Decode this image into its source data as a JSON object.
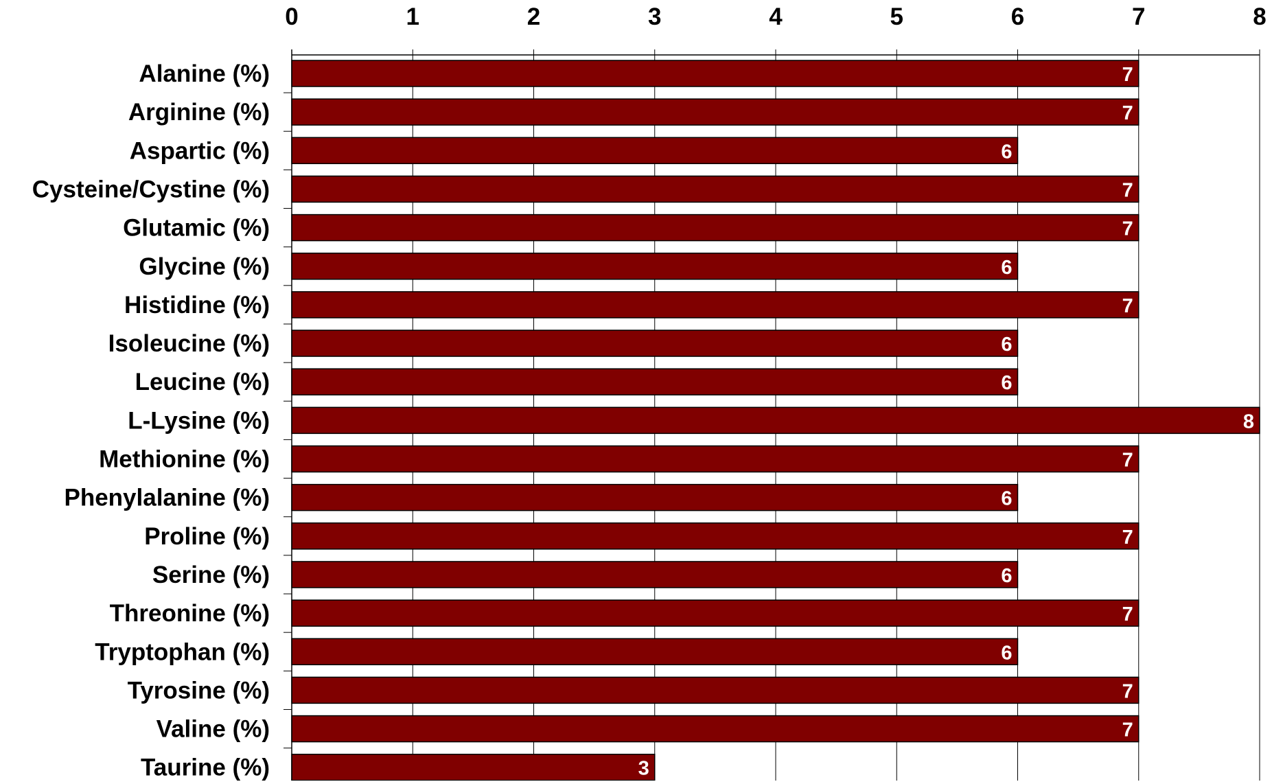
{
  "chart_data": {
    "type": "bar",
    "orientation": "horizontal",
    "categories": [
      "Alanine (%)",
      "Arginine (%)",
      "Aspartic (%)",
      "Cysteine/Cystine (%)",
      "Glutamic (%)",
      "Glycine (%)",
      "Histidine (%)",
      "Isoleucine (%)",
      "Leucine (%)",
      "L-Lysine (%)",
      "Methionine (%)",
      "Phenylalanine (%)",
      "Proline (%)",
      "Serine (%)",
      "Threonine (%)",
      "Tryptophan (%)",
      "Tyrosine (%)",
      "Valine (%)",
      "Taurine (%)"
    ],
    "values": [
      7,
      7,
      6,
      7,
      7,
      6,
      7,
      6,
      6,
      8,
      7,
      6,
      7,
      6,
      7,
      6,
      7,
      7,
      3
    ],
    "xlim": [
      0,
      8
    ],
    "xticks": [
      "0",
      "1",
      "2",
      "3",
      "4",
      "5",
      "6",
      "7",
      "8"
    ],
    "axis_position": "top",
    "grid": "vertical",
    "legend": "none",
    "data_labels": "inside-end",
    "colors": {
      "bar_fill": "#800000",
      "bar_stroke": "#000000",
      "grid": "#000000",
      "label_text": "#000000",
      "data_label_text": "#ffffff"
    }
  }
}
